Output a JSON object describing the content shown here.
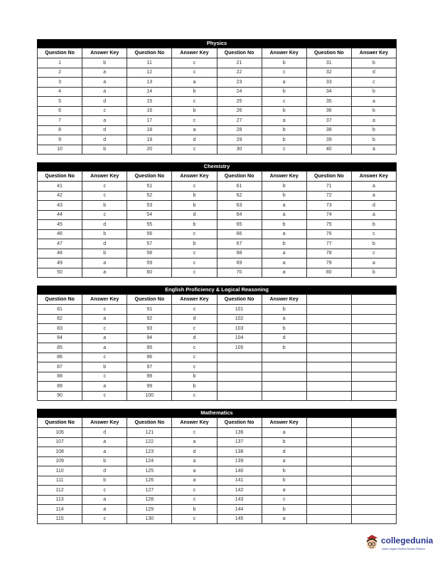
{
  "headers": [
    "Question No",
    "Answer Key",
    "Question No",
    "Answer Key",
    "Question No",
    "Answer Key",
    "Question No",
    "Answer Key"
  ],
  "sections": [
    {
      "title": "Physics",
      "rows": [
        [
          "1",
          "b",
          "11",
          "c",
          "21",
          "b",
          "31",
          "b"
        ],
        [
          "2",
          "a",
          "12",
          "c",
          "22",
          "c",
          "32",
          "d"
        ],
        [
          "3",
          "a",
          "13",
          "a",
          "23",
          "a",
          "33",
          "c"
        ],
        [
          "4",
          "a",
          "14",
          "b",
          "24",
          "b",
          "34",
          "b"
        ],
        [
          "5",
          "d",
          "15",
          "c",
          "25",
          "c",
          "35",
          "a"
        ],
        [
          "6",
          "c",
          "16",
          "b",
          "26",
          "b",
          "36",
          "b"
        ],
        [
          "7",
          "a",
          "17",
          "c",
          "27",
          "a",
          "37",
          "a"
        ],
        [
          "8",
          "d",
          "18",
          "a",
          "28",
          "b",
          "38",
          "b"
        ],
        [
          "9",
          "d",
          "19",
          "d",
          "29",
          "b",
          "39",
          "b"
        ],
        [
          "10",
          "b",
          "20",
          "c",
          "30",
          "c",
          "40",
          "a"
        ]
      ]
    },
    {
      "title": "Chemistry",
      "rows": [
        [
          "41",
          "c",
          "51",
          "c",
          "61",
          "b",
          "71",
          "a"
        ],
        [
          "42",
          "c",
          "52",
          "b",
          "62",
          "b",
          "72",
          "a"
        ],
        [
          "43",
          "b",
          "53",
          "b",
          "63",
          "a",
          "73",
          "d"
        ],
        [
          "44",
          "c",
          "54",
          "d",
          "64",
          "a",
          "74",
          "a"
        ],
        [
          "45",
          "d",
          "55",
          "b",
          "65",
          "b",
          "75",
          "b"
        ],
        [
          "46",
          "b",
          "56",
          "c",
          "66",
          "a",
          "76",
          "c"
        ],
        [
          "47",
          "d",
          "57",
          "b",
          "67",
          "b",
          "77",
          "b"
        ],
        [
          "48",
          "b",
          "58",
          "c",
          "68",
          "a",
          "78",
          "c"
        ],
        [
          "49",
          "a",
          "59",
          "c",
          "69",
          "a",
          "79",
          "a"
        ],
        [
          "50",
          "a",
          "60",
          "c",
          "70",
          "a",
          "80",
          "b"
        ]
      ]
    },
    {
      "title": "English Proficiency & Logical Reasoning",
      "headers": [
        "Question No",
        "Answer Key",
        "Question No",
        "Answer Key",
        "Question No",
        "Answer Key",
        "",
        ""
      ],
      "rows": [
        [
          "81",
          "c",
          "91",
          "c",
          "101",
          "b",
          "",
          ""
        ],
        [
          "82",
          "a",
          "92",
          "d",
          "102",
          "a",
          "",
          ""
        ],
        [
          "83",
          "c",
          "93",
          "c",
          "103",
          "b",
          "",
          ""
        ],
        [
          "84",
          "a",
          "94",
          "d",
          "104",
          "d",
          "",
          ""
        ],
        [
          "85",
          "a",
          "95",
          "c",
          "105",
          "b",
          "",
          ""
        ],
        [
          "86",
          "c",
          "96",
          "c",
          "",
          "",
          "",
          ""
        ],
        [
          "87",
          "b",
          "97",
          "c",
          "",
          "",
          "",
          ""
        ],
        [
          "88",
          "c",
          "98",
          "b",
          "",
          "",
          "",
          ""
        ],
        [
          "89",
          "a",
          "99",
          "b",
          "",
          "",
          "",
          ""
        ],
        [
          "90",
          "c",
          "100",
          "c",
          "",
          "",
          "",
          ""
        ]
      ]
    },
    {
      "title": "Mathematics",
      "headers": [
        "Question No",
        "Answer Key",
        "Question No",
        "Answer Key",
        "Question No",
        "Answer Key",
        "",
        ""
      ],
      "rows": [
        [
          "106",
          "d",
          "121",
          "c",
          "136",
          "a",
          "",
          ""
        ],
        [
          "107",
          "a",
          "122",
          "a",
          "137",
          "b",
          "",
          ""
        ],
        [
          "108",
          "a",
          "123",
          "d",
          "138",
          "d",
          "",
          ""
        ],
        [
          "109",
          "b",
          "124",
          "a",
          "139",
          "a",
          "",
          ""
        ],
        [
          "110",
          "d",
          "125",
          "a",
          "140",
          "b",
          "",
          ""
        ],
        [
          "111",
          "b",
          "126",
          "a",
          "141",
          "b",
          "",
          ""
        ],
        [
          "112",
          "c",
          "127",
          "c",
          "142",
          "a",
          "",
          ""
        ],
        [
          "113",
          "a",
          "128",
          "c",
          "143",
          "c",
          "",
          ""
        ],
        [
          "114",
          "a",
          "129",
          "b",
          "144",
          "b",
          "",
          ""
        ],
        [
          "115",
          "c",
          "130",
          "c",
          "145",
          "a",
          "",
          ""
        ]
      ]
    }
  ],
  "logo": {
    "brand": "collegedunia",
    "tagline": "India's largest Student Review Platform"
  }
}
